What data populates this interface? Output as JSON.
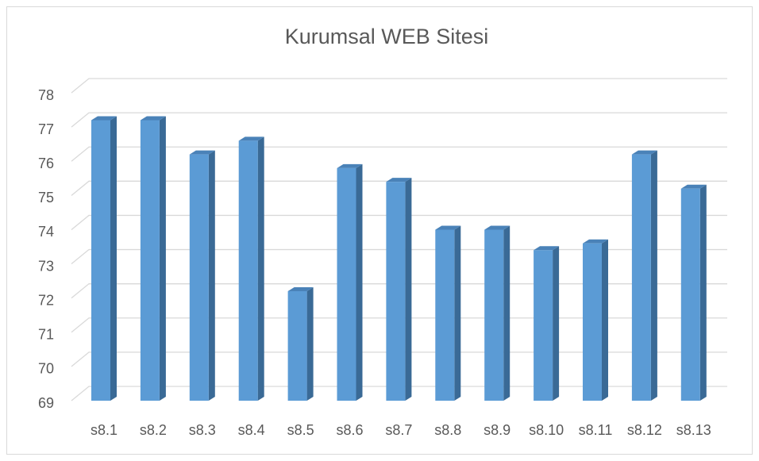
{
  "chart_data": {
    "type": "bar3d",
    "title": "Kurumsal WEB Sitesi",
    "categories": [
      "s8.1",
      "s8.2",
      "s8.3",
      "s8.4",
      "s8.5",
      "s8.6",
      "s8.7",
      "s8.8",
      "s8.9",
      "s8.10",
      "s8.11",
      "s8.12",
      "s8.13"
    ],
    "values": [
      77.2,
      77.2,
      76.2,
      76.6,
      72.2,
      75.8,
      75.4,
      74.0,
      74.0,
      73.4,
      73.6,
      76.2,
      75.2
    ],
    "color": "#5b9bd5",
    "ylim": [
      69,
      78
    ],
    "yticks": [
      69,
      70,
      71,
      72,
      73,
      74,
      75,
      76,
      77,
      78
    ],
    "grid": true
  }
}
